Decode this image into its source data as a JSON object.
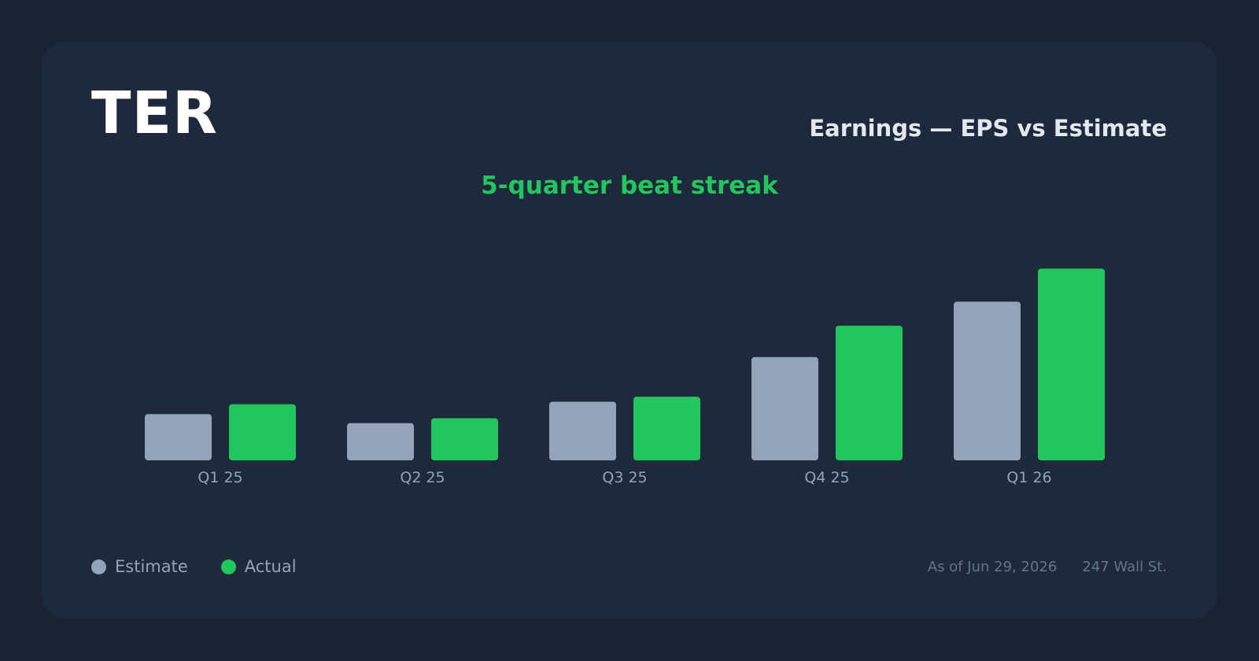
{
  "header": {
    "ticker": "TER",
    "title": "Earnings — EPS vs Estimate",
    "subtitle": "5-quarter beat streak"
  },
  "legend": {
    "estimate_label": "Estimate",
    "actual_label": "Actual"
  },
  "footer": {
    "as_of": "As of Jun 29, 2026",
    "source": "247 Wall St."
  },
  "colors": {
    "background": "#1a2332",
    "card": "#1e293b",
    "estimate": "#94a3b8",
    "actual": "#22c55e",
    "tick_label": "#94a3b8"
  },
  "chart_data": {
    "type": "bar",
    "categories": [
      "Q1 25",
      "Q2 25",
      "Q3 25",
      "Q4 25",
      "Q1 26"
    ],
    "series": [
      {
        "name": "Estimate",
        "values": [
          0.56,
          0.45,
          0.71,
          1.25,
          1.92
        ]
      },
      {
        "name": "Actual",
        "values": [
          0.68,
          0.51,
          0.77,
          1.63,
          2.32
        ]
      }
    ],
    "ylim": [
      0,
      2.4
    ],
    "grid": false,
    "legend_position": "bottom-left"
  }
}
